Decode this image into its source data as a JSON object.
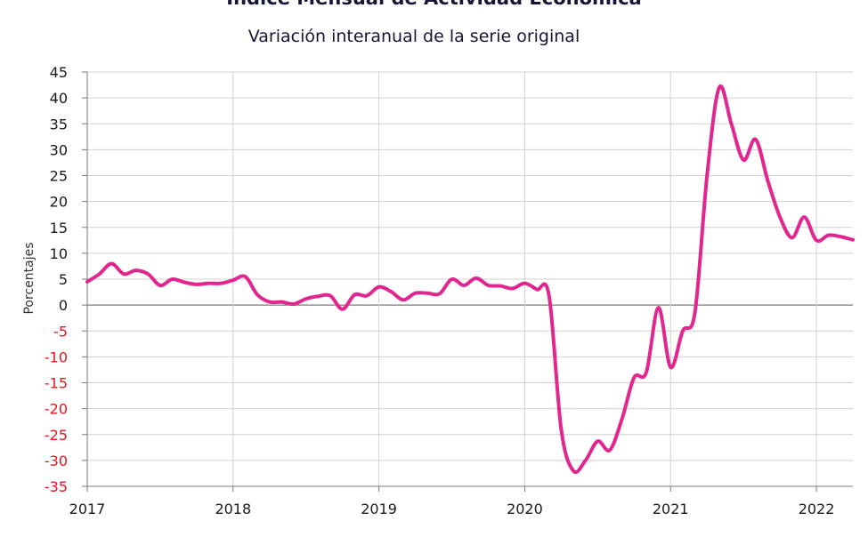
{
  "chart_data": {
    "type": "line",
    "title": "Índice Mensual de Actividad Económica",
    "subtitle": "Variación interanual de la serie original",
    "xlabel": "",
    "ylabel": "Porcentajes",
    "x_ticks": [
      "2017",
      "2018",
      "2019",
      "2020",
      "2021",
      "2022"
    ],
    "y_ticks": [
      45,
      40,
      35,
      30,
      25,
      20,
      15,
      10,
      5,
      0,
      -5,
      -10,
      -15,
      -20,
      -25,
      -30,
      -35
    ],
    "ylim": [
      -35,
      45
    ],
    "xlim": [
      "2017-01",
      "2022-04"
    ],
    "grid": true,
    "negative_tick_color": "#e8141f",
    "positive_tick_color": "#1a1a1a",
    "series": [
      {
        "color": "#e1268f",
        "x": [
          "2017-01",
          "2017-02",
          "2017-03",
          "2017-04",
          "2017-05",
          "2017-06",
          "2017-07",
          "2017-08",
          "2017-09",
          "2017-10",
          "2017-11",
          "2017-12",
          "2018-01",
          "2018-02",
          "2018-03",
          "2018-04",
          "2018-05",
          "2018-06",
          "2018-07",
          "2018-08",
          "2018-09",
          "2018-10",
          "2018-11",
          "2018-12",
          "2019-01",
          "2019-02",
          "2019-03",
          "2019-04",
          "2019-05",
          "2019-06",
          "2019-07",
          "2019-08",
          "2019-09",
          "2019-10",
          "2019-11",
          "2019-12",
          "2020-01",
          "2020-02",
          "2020-03",
          "2020-04",
          "2020-05",
          "2020-06",
          "2020-07",
          "2020-08",
          "2020-09",
          "2020-10",
          "2020-11",
          "2020-12",
          "2021-01",
          "2021-02",
          "2021-03",
          "2021-04",
          "2021-05",
          "2021-06",
          "2021-07",
          "2021-08",
          "2021-09",
          "2021-10",
          "2021-11",
          "2021-12",
          "2022-01",
          "2022-02",
          "2022-03",
          "2022-04"
        ],
        "values": [
          4.5,
          6.0,
          8.0,
          6.0,
          6.7,
          6.0,
          3.8,
          5.0,
          4.4,
          4.0,
          4.2,
          4.2,
          4.8,
          5.5,
          2.0,
          0.6,
          0.6,
          0.2,
          1.2,
          1.7,
          1.8,
          -0.8,
          2.0,
          1.8,
          3.5,
          2.6,
          1.0,
          2.3,
          2.3,
          2.2,
          5.0,
          3.8,
          5.2,
          3.8,
          3.7,
          3.2,
          4.2,
          3.0,
          1.8,
          -24.0,
          -32.0,
          -30.0,
          -26.3,
          -28.0,
          -22.0,
          -14.0,
          -13.0,
          -0.5,
          -12.0,
          -5.0,
          -1.5,
          25.0,
          42.0,
          35.0,
          28.0,
          32.0,
          24.0,
          17.0,
          13.0,
          17.0,
          12.5,
          13.5,
          13.2,
          12.6
        ]
      }
    ]
  }
}
